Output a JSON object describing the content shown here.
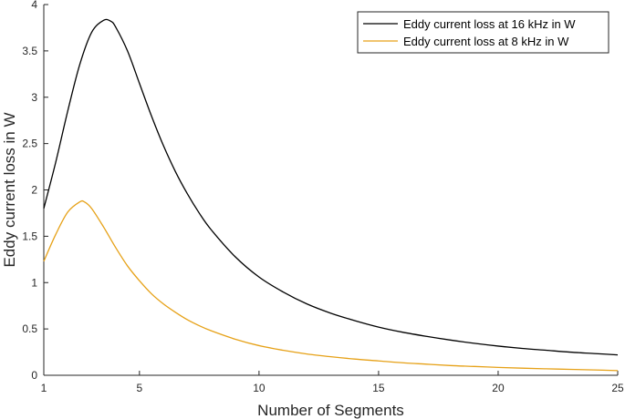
{
  "chart_data": {
    "type": "line",
    "title": "",
    "xlabel": "Number of Segments",
    "ylabel": "Eddy current loss in W",
    "xlim": [
      1,
      25
    ],
    "ylim": [
      0,
      4
    ],
    "xticks": [
      1,
      5,
      10,
      15,
      20,
      25
    ],
    "yticks": [
      0,
      0.5,
      1,
      1.5,
      2,
      2.5,
      3,
      3.5,
      4
    ],
    "grid": false,
    "legend_position": "top-right",
    "series": [
      {
        "name": "Eddy current loss at 16 kHz in W",
        "color": "#000000",
        "x": [
          1,
          1.5,
          2,
          2.5,
          3,
          3.5,
          3.8,
          4,
          4.5,
          5,
          5.5,
          6,
          6.5,
          7,
          7.5,
          8,
          9,
          10,
          11,
          12,
          13,
          14,
          15,
          16,
          17,
          18,
          19,
          20,
          21,
          22,
          23,
          24,
          25
        ],
        "values": [
          1.8,
          2.3,
          2.85,
          3.35,
          3.7,
          3.83,
          3.82,
          3.76,
          3.5,
          3.15,
          2.8,
          2.48,
          2.2,
          1.96,
          1.75,
          1.57,
          1.28,
          1.06,
          0.9,
          0.77,
          0.67,
          0.59,
          0.52,
          0.465,
          0.42,
          0.38,
          0.345,
          0.315,
          0.29,
          0.27,
          0.25,
          0.235,
          0.22
        ]
      },
      {
        "name": "Eddy current loss at 8 kHz in W",
        "color": "#E6A117",
        "x": [
          1,
          1.5,
          2,
          2.5,
          2.7,
          3,
          3.5,
          4,
          4.5,
          5,
          5.5,
          6,
          6.5,
          7,
          7.5,
          8,
          9,
          10,
          11,
          12,
          13,
          14,
          15,
          16,
          17,
          18,
          19,
          20,
          21,
          22,
          23,
          24,
          25
        ],
        "values": [
          1.23,
          1.52,
          1.76,
          1.87,
          1.87,
          1.8,
          1.6,
          1.38,
          1.18,
          1.02,
          0.88,
          0.77,
          0.68,
          0.6,
          0.535,
          0.48,
          0.39,
          0.32,
          0.27,
          0.23,
          0.2,
          0.175,
          0.155,
          0.135,
          0.12,
          0.105,
          0.095,
          0.085,
          0.077,
          0.07,
          0.064,
          0.058,
          0.05
        ]
      }
    ]
  }
}
